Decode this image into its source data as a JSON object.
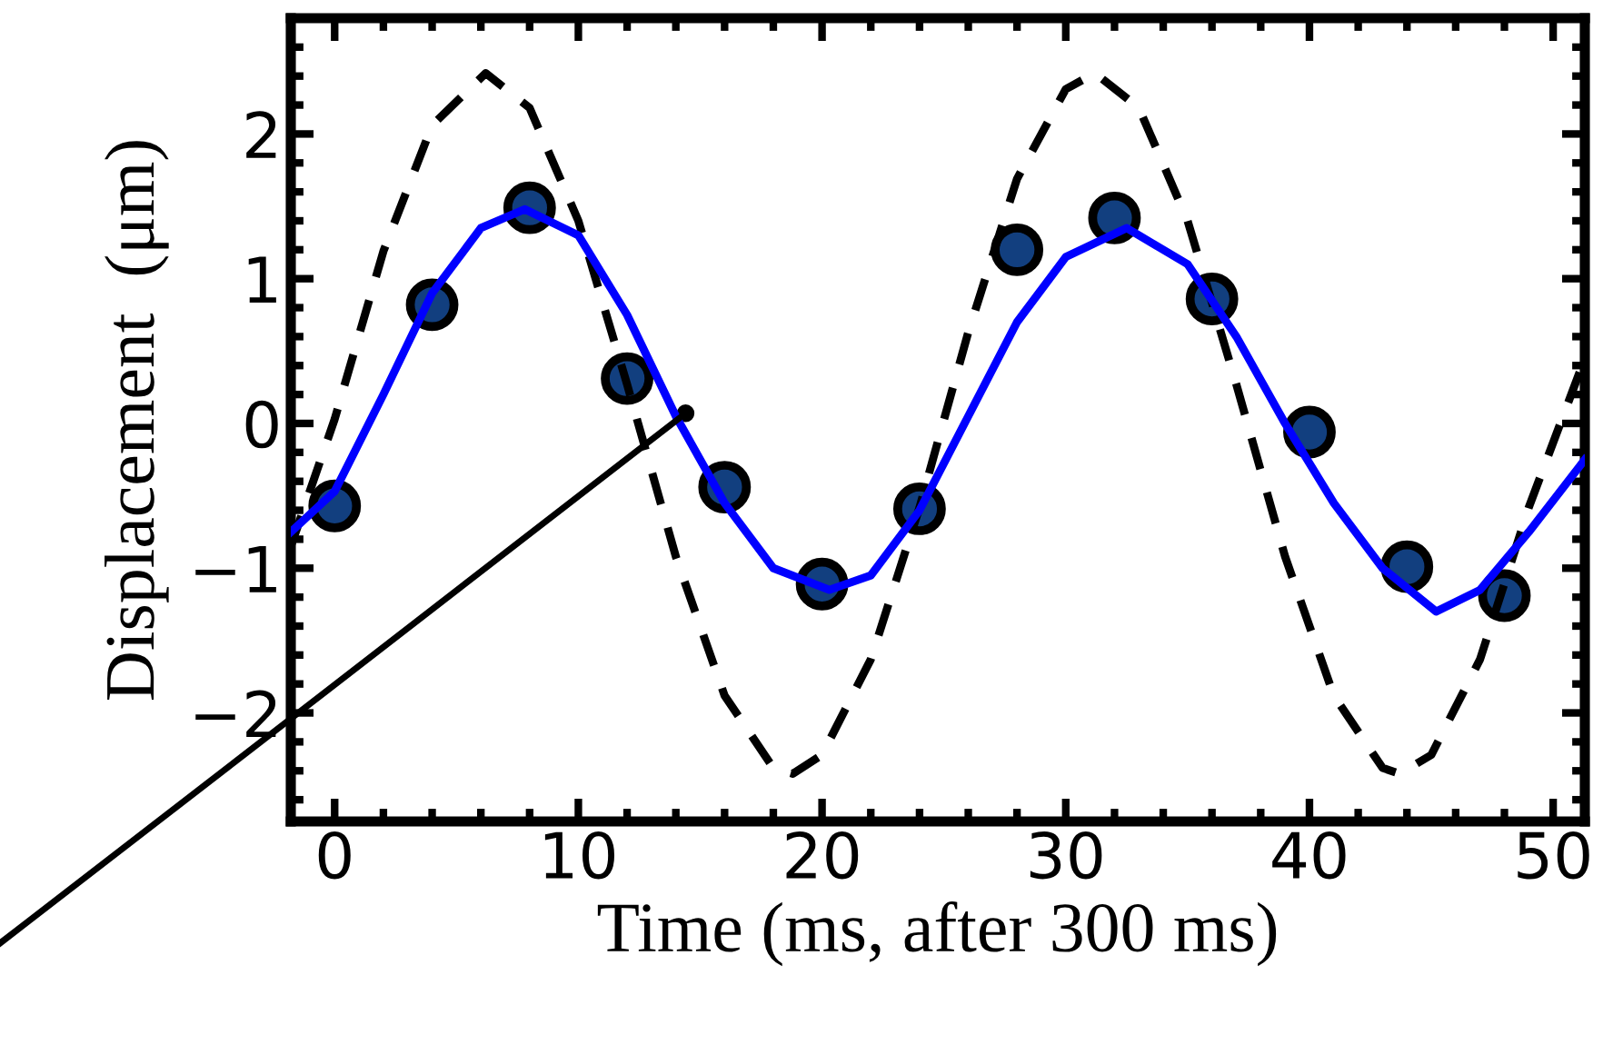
{
  "chart_data": {
    "type": "line",
    "xlabel": "Time (ms, after 300 ms)",
    "ylabel": "Displacement  (μm)",
    "xlim": [
      -1.8,
      51.3
    ],
    "ylim": [
      -2.75,
      2.8
    ],
    "xticks": [
      0,
      10,
      20,
      30,
      40,
      50
    ],
    "yticks": [
      {
        "value": -2,
        "label": "−2"
      },
      {
        "value": -1,
        "label": "−1"
      },
      0,
      1,
      2
    ],
    "grid": false,
    "legend": false,
    "series": [
      {
        "color": "#000000",
        "line_style": "dashed",
        "marker": "none",
        "x": [
          -1.8,
          0,
          2,
          4,
          6.2,
          8,
          10,
          12,
          14,
          16,
          18,
          18.8,
          20,
          22,
          24,
          26,
          28,
          30,
          31.2,
          33,
          35,
          37,
          39,
          41,
          43,
          43.7,
          45,
          47,
          49,
          51.3
        ],
        "values": [
          -0.85,
          0.03,
          1.19,
          2.06,
          2.42,
          2.18,
          1.4,
          0.27,
          -0.92,
          -1.88,
          -2.38,
          -2.42,
          -2.29,
          -1.63,
          -0.58,
          0.63,
          1.69,
          2.31,
          2.42,
          2.18,
          1.4,
          0.27,
          -0.92,
          -1.88,
          -2.38,
          -2.42,
          -2.29,
          -1.63,
          -0.58,
          0.45
        ]
      },
      {
        "color": "#0000ff",
        "line_style": "solid",
        "marker": "none",
        "x": [
          -1.8,
          0,
          2,
          4,
          6,
          7.8,
          10,
          12,
          14,
          16,
          18,
          20.3,
          22,
          24,
          26,
          28,
          30,
          32.5,
          35,
          37,
          39,
          41,
          43,
          45.2,
          47,
          49,
          51.3
        ],
        "values": [
          -0.75,
          -0.47,
          0.2,
          0.9,
          1.35,
          1.48,
          1.3,
          0.75,
          0.05,
          -0.55,
          -1.0,
          -1.15,
          -1.05,
          -0.6,
          0.05,
          0.7,
          1.15,
          1.35,
          1.1,
          0.6,
          0.0,
          -0.55,
          -1.0,
          -1.3,
          -1.15,
          -0.75,
          -0.25
        ]
      },
      {
        "color": "#000000",
        "line_style": "solid",
        "x": [
          -1.8,
          14.4
        ],
        "values": [
          -2.04,
          0.07
        ]
      },
      {
        "type": "scatter",
        "color": "#123f7f",
        "marker": "circle",
        "x": [
          0,
          4,
          8,
          12,
          16,
          20,
          24,
          28,
          32,
          36,
          40,
          44,
          48
        ],
        "values": [
          -0.57,
          0.82,
          1.49,
          0.31,
          -0.44,
          -1.11,
          -0.59,
          1.2,
          1.42,
          0.86,
          -0.06,
          -0.99,
          -1.19
        ]
      }
    ]
  }
}
